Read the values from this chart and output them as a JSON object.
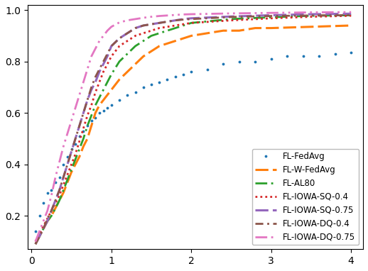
{
  "title": "",
  "xlabel": "",
  "ylabel": "",
  "xlim": [
    -0.05,
    4.15
  ],
  "ylim": [
    0.07,
    1.02
  ],
  "yticks": [
    0.2,
    0.4,
    0.6,
    0.8,
    1.0
  ],
  "xticks": [
    0,
    1,
    2,
    3,
    4
  ],
  "series": {
    "FL-FedAvg": {
      "x": [
        0.05,
        0.1,
        0.15,
        0.2,
        0.25,
        0.3,
        0.35,
        0.4,
        0.45,
        0.5,
        0.55,
        0.6,
        0.65,
        0.7,
        0.75,
        0.8,
        0.85,
        0.9,
        0.95,
        1.0,
        1.1,
        1.2,
        1.3,
        1.4,
        1.5,
        1.6,
        1.7,
        1.8,
        1.9,
        2.0,
        2.2,
        2.4,
        2.6,
        2.8,
        3.0,
        3.2,
        3.4,
        3.6,
        3.8,
        4.0
      ],
      "y": [
        0.14,
        0.2,
        0.25,
        0.29,
        0.3,
        0.33,
        0.35,
        0.4,
        0.43,
        0.46,
        0.48,
        0.51,
        0.53,
        0.55,
        0.57,
        0.58,
        0.6,
        0.61,
        0.62,
        0.63,
        0.65,
        0.67,
        0.68,
        0.7,
        0.71,
        0.72,
        0.73,
        0.74,
        0.75,
        0.76,
        0.77,
        0.79,
        0.8,
        0.8,
        0.81,
        0.82,
        0.82,
        0.82,
        0.83,
        0.835
      ],
      "color": "#1f77b4",
      "linestyle": "dotted_scatter",
      "linewidth": 1.5,
      "markersize": 3.5
    },
    "FL-W-FedAvg": {
      "x": [
        0.05,
        0.1,
        0.15,
        0.2,
        0.25,
        0.3,
        0.35,
        0.4,
        0.45,
        0.5,
        0.55,
        0.6,
        0.65,
        0.7,
        0.75,
        0.8,
        0.85,
        0.9,
        0.95,
        1.0,
        1.1,
        1.2,
        1.3,
        1.4,
        1.5,
        1.6,
        1.7,
        1.8,
        1.9,
        2.0,
        2.2,
        2.4,
        2.6,
        2.8,
        3.0,
        3.5,
        4.0
      ],
      "y": [
        0.09,
        0.12,
        0.15,
        0.18,
        0.2,
        0.23,
        0.26,
        0.29,
        0.33,
        0.37,
        0.4,
        0.43,
        0.47,
        0.5,
        0.55,
        0.6,
        0.63,
        0.65,
        0.67,
        0.69,
        0.73,
        0.76,
        0.79,
        0.82,
        0.84,
        0.86,
        0.87,
        0.88,
        0.89,
        0.9,
        0.91,
        0.92,
        0.92,
        0.93,
        0.93,
        0.935,
        0.94
      ],
      "color": "#ff7f0e",
      "linestyle": "dashed",
      "linewidth": 2.2,
      "markersize": null
    },
    "FL-AL80": {
      "x": [
        0.05,
        0.1,
        0.15,
        0.2,
        0.25,
        0.3,
        0.35,
        0.4,
        0.45,
        0.5,
        0.55,
        0.6,
        0.65,
        0.7,
        0.75,
        0.8,
        0.85,
        0.9,
        0.95,
        1.0,
        1.1,
        1.2,
        1.3,
        1.4,
        1.5,
        1.6,
        1.7,
        1.8,
        1.9,
        2.0,
        2.5,
        3.0,
        3.5,
        4.0
      ],
      "y": [
        0.09,
        0.12,
        0.15,
        0.18,
        0.2,
        0.23,
        0.26,
        0.3,
        0.34,
        0.38,
        0.42,
        0.46,
        0.5,
        0.55,
        0.59,
        0.63,
        0.66,
        0.69,
        0.72,
        0.75,
        0.8,
        0.83,
        0.86,
        0.88,
        0.9,
        0.91,
        0.92,
        0.93,
        0.94,
        0.95,
        0.965,
        0.972,
        0.978,
        0.98
      ],
      "color": "#2ca02c",
      "linestyle": "dashdot_dot",
      "linewidth": 2.0,
      "markersize": null
    },
    "FL-IOWA-SQ-0.4": {
      "x": [
        0.05,
        0.1,
        0.15,
        0.2,
        0.25,
        0.3,
        0.35,
        0.4,
        0.45,
        0.5,
        0.55,
        0.6,
        0.65,
        0.7,
        0.75,
        0.8,
        0.85,
        0.9,
        0.95,
        1.0,
        1.1,
        1.2,
        1.3,
        1.4,
        1.5,
        1.6,
        1.7,
        1.8,
        1.9,
        2.0,
        2.5,
        3.0,
        3.5,
        4.0
      ],
      "y": [
        0.1,
        0.13,
        0.16,
        0.19,
        0.22,
        0.25,
        0.28,
        0.32,
        0.36,
        0.4,
        0.44,
        0.49,
        0.54,
        0.59,
        0.63,
        0.68,
        0.72,
        0.76,
        0.79,
        0.82,
        0.86,
        0.88,
        0.9,
        0.91,
        0.92,
        0.93,
        0.935,
        0.94,
        0.945,
        0.95,
        0.96,
        0.968,
        0.974,
        0.978
      ],
      "color": "#d62728",
      "linestyle": "densely_dotted",
      "linewidth": 2.0,
      "markersize": null
    },
    "FL-IOWA-SQ-0.75": {
      "x": [
        0.05,
        0.1,
        0.15,
        0.2,
        0.25,
        0.3,
        0.35,
        0.4,
        0.45,
        0.5,
        0.55,
        0.6,
        0.65,
        0.7,
        0.75,
        0.8,
        0.85,
        0.9,
        0.95,
        1.0,
        1.1,
        1.2,
        1.3,
        1.4,
        1.5,
        1.6,
        1.7,
        1.8,
        1.9,
        2.0,
        2.5,
        3.0,
        3.5,
        4.0
      ],
      "y": [
        0.09,
        0.12,
        0.15,
        0.18,
        0.22,
        0.26,
        0.3,
        0.35,
        0.4,
        0.45,
        0.5,
        0.55,
        0.6,
        0.65,
        0.69,
        0.72,
        0.76,
        0.79,
        0.82,
        0.86,
        0.89,
        0.91,
        0.93,
        0.94,
        0.945,
        0.95,
        0.955,
        0.96,
        0.965,
        0.968,
        0.975,
        0.98,
        0.984,
        0.986
      ],
      "color": "#9467bd",
      "linestyle": "dashed",
      "linewidth": 2.2,
      "markersize": null
    },
    "FL-IOWA-DQ-0.4": {
      "x": [
        0.05,
        0.1,
        0.15,
        0.2,
        0.25,
        0.3,
        0.35,
        0.4,
        0.45,
        0.5,
        0.55,
        0.6,
        0.65,
        0.7,
        0.75,
        0.8,
        0.85,
        0.9,
        0.95,
        1.0,
        1.1,
        1.2,
        1.3,
        1.4,
        1.5,
        1.6,
        1.7,
        1.8,
        1.9,
        2.0,
        2.5,
        3.0,
        3.5,
        4.0
      ],
      "y": [
        0.09,
        0.12,
        0.15,
        0.19,
        0.22,
        0.26,
        0.3,
        0.35,
        0.4,
        0.45,
        0.5,
        0.55,
        0.6,
        0.65,
        0.7,
        0.74,
        0.77,
        0.8,
        0.83,
        0.86,
        0.89,
        0.91,
        0.93,
        0.94,
        0.945,
        0.95,
        0.955,
        0.96,
        0.963,
        0.965,
        0.973,
        0.977,
        0.979,
        0.98
      ],
      "color": "#8c564b",
      "linestyle": "dashdot",
      "linewidth": 2.0,
      "markersize": null
    },
    "FL-IOWA-DQ-0.75": {
      "x": [
        0.05,
        0.1,
        0.15,
        0.2,
        0.25,
        0.3,
        0.35,
        0.4,
        0.45,
        0.5,
        0.55,
        0.6,
        0.65,
        0.7,
        0.75,
        0.8,
        0.85,
        0.9,
        0.95,
        1.0,
        1.1,
        1.2,
        1.3,
        1.4,
        1.5,
        1.6,
        1.7,
        1.8,
        1.9,
        2.0,
        2.5,
        3.0,
        3.5,
        4.0
      ],
      "y": [
        0.1,
        0.14,
        0.18,
        0.22,
        0.28,
        0.35,
        0.41,
        0.47,
        0.52,
        0.57,
        0.62,
        0.67,
        0.72,
        0.77,
        0.82,
        0.85,
        0.88,
        0.9,
        0.92,
        0.935,
        0.952,
        0.96,
        0.965,
        0.97,
        0.974,
        0.977,
        0.979,
        0.981,
        0.983,
        0.984,
        0.987,
        0.989,
        0.991,
        0.992
      ],
      "color": "#e377c2",
      "linestyle": "dashdotdot",
      "linewidth": 2.0,
      "markersize": null
    }
  },
  "legend_order": [
    "FL-FedAvg",
    "FL-W-FedAvg",
    "FL-AL80",
    "FL-IOWA-SQ-0.4",
    "FL-IOWA-SQ-0.75",
    "FL-IOWA-DQ-0.4",
    "FL-IOWA-DQ-0.75"
  ],
  "legend_loc": "lower right",
  "figsize": [
    5.18,
    3.82
  ],
  "dpi": 100
}
